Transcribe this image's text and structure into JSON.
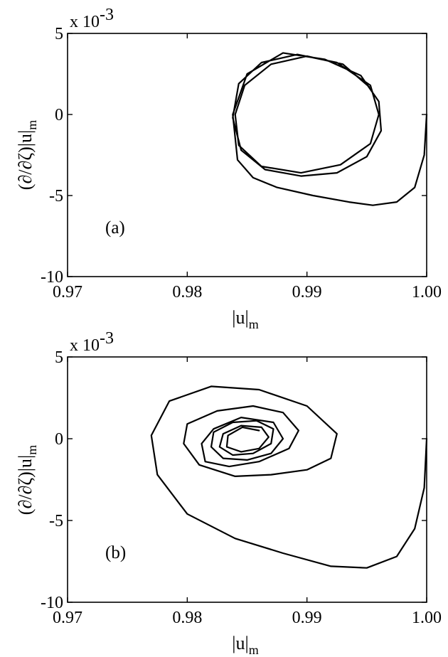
{
  "chart_data": [
    {
      "type": "line",
      "panel_label": "(a)",
      "xlabel": {
        "main": "|u|",
        "sub": "m"
      },
      "ylabel": {
        "main": "(∂/∂ζ)|u|",
        "sub": "m"
      },
      "y_multiplier": "x 10",
      "y_multiplier_exp": "-3",
      "xlim": [
        0.97,
        1.0
      ],
      "ylim": [
        -10,
        5
      ],
      "xticks": [
        0.97,
        0.98,
        0.99,
        1.0
      ],
      "xtick_labels": [
        "0.97",
        "0.98",
        "0.99",
        "1.00"
      ],
      "yticks": [
        5,
        0,
        -5,
        -10
      ],
      "ytick_labels": [
        "5",
        "0",
        "-5",
        "-10"
      ],
      "grid": false,
      "series": [
        {
          "x": [
            1.0,
            0.9998,
            0.999,
            0.9975,
            0.9955,
            0.9935,
            0.9905,
            0.9875,
            0.9855,
            0.9842,
            0.9838,
            0.985,
            0.988,
            0.9915,
            0.9945,
            0.996,
            0.9962,
            0.995,
            0.9925,
            0.9895,
            0.9865,
            0.9845,
            0.9838,
            0.9843,
            0.9862,
            0.9892,
            0.9925,
            0.9953,
            0.996,
            0.9953,
            0.9928,
            0.9895,
            0.9862,
            0.9843,
            0.984,
            0.9848,
            0.987,
            0.99,
            0.993,
            0.9952
          ],
          "y": [
            0.0,
            -2.5,
            -4.5,
            -5.4,
            -5.6,
            -5.4,
            -5.0,
            -4.5,
            -3.9,
            -2.8,
            0.0,
            2.5,
            3.8,
            3.4,
            2.4,
            0.8,
            -1.0,
            -2.6,
            -3.6,
            -3.8,
            -3.4,
            -2.2,
            -0.2,
            1.9,
            3.2,
            3.7,
            3.2,
            1.8,
            0.0,
            -1.8,
            -3.1,
            -3.6,
            -3.2,
            -1.9,
            0.0,
            1.8,
            3.1,
            3.6,
            3.1,
            1.7
          ]
        }
      ]
    },
    {
      "type": "line",
      "panel_label": "(b)",
      "xlabel": {
        "main": "|u|",
        "sub": "m"
      },
      "ylabel": {
        "main": "(∂/∂ζ)|u|",
        "sub": "m"
      },
      "y_multiplier": "x 10",
      "y_multiplier_exp": "-3",
      "xlim": [
        0.97,
        1.0
      ],
      "ylim": [
        -10,
        5
      ],
      "xticks": [
        0.97,
        0.98,
        0.99,
        1.0
      ],
      "xtick_labels": [
        "0.97",
        "0.98",
        "0.99",
        "1.00"
      ],
      "yticks": [
        5,
        0,
        -5,
        -10
      ],
      "ytick_labels": [
        "5",
        "0",
        "-5",
        "-10"
      ],
      "grid": false,
      "series": [
        {
          "x": [
            1.0,
            0.9998,
            0.999,
            0.9975,
            0.995,
            0.992,
            0.988,
            0.984,
            0.98,
            0.9775,
            0.977,
            0.9785,
            0.982,
            0.986,
            0.99,
            0.9925,
            0.992,
            0.99,
            0.987,
            0.984,
            0.981,
            0.9797,
            0.98,
            0.9825,
            0.9855,
            0.988,
            0.9893,
            0.9885,
            0.986,
            0.9835,
            0.9815,
            0.9812,
            0.9822,
            0.9845,
            0.9872,
            0.988,
            0.987,
            0.985,
            0.983,
            0.982,
            0.9822,
            0.9838,
            0.9858,
            0.9872,
            0.987,
            0.9855,
            0.9838,
            0.9827,
            0.983,
            0.9845,
            0.9862,
            0.9868,
            0.986,
            0.9845,
            0.9833,
            0.9834,
            0.9846,
            0.986
          ],
          "y": [
            0.0,
            -3.0,
            -5.5,
            -7.2,
            -7.9,
            -7.8,
            -7.0,
            -6.1,
            -4.6,
            -2.2,
            0.2,
            2.3,
            3.2,
            3.0,
            2.0,
            0.3,
            -1.2,
            -1.9,
            -2.2,
            -2.3,
            -1.6,
            -0.3,
            0.9,
            1.7,
            2.0,
            1.6,
            0.5,
            -0.6,
            -1.4,
            -1.7,
            -1.4,
            -0.3,
            0.6,
            1.3,
            1.0,
            0.0,
            -0.9,
            -1.3,
            -1.2,
            -0.5,
            0.4,
            1.0,
            1.1,
            0.6,
            -0.3,
            -0.9,
            -1.0,
            -0.5,
            0.3,
            0.8,
            0.7,
            0.1,
            -0.6,
            -0.8,
            -0.5,
            0.2,
            0.7,
            0.5
          ]
        }
      ]
    }
  ]
}
